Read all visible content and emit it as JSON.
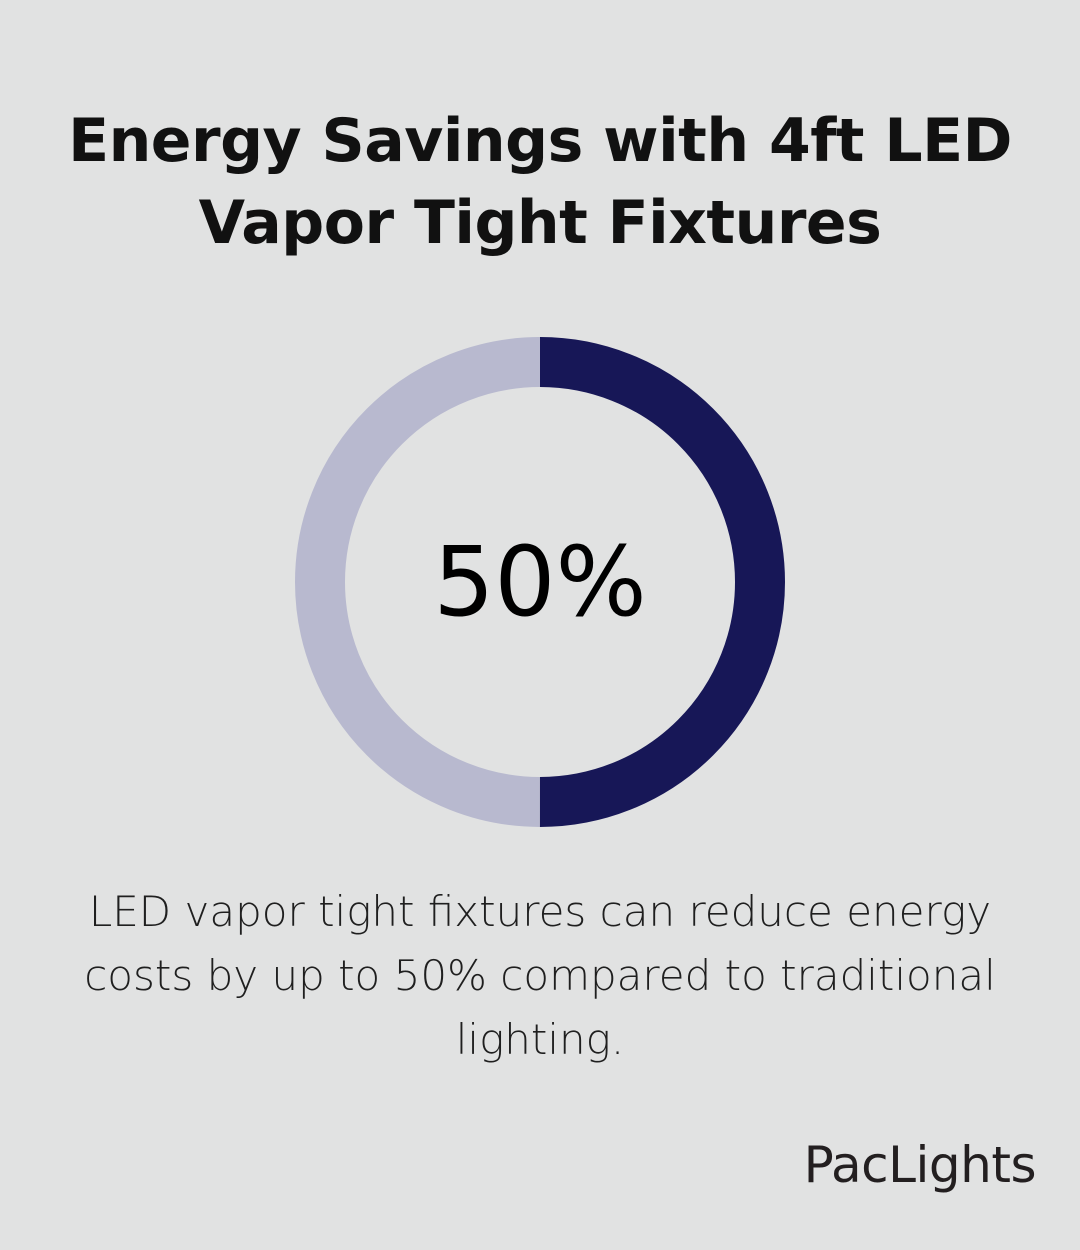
{
  "title_line1": "Energy Savings with 4ft LED",
  "title_line2": "Vapor Tight Fixtures",
  "chart_data": {
    "type": "pie",
    "variant": "donut",
    "value_percent": 50,
    "center_label": "50%",
    "slices": [
      {
        "value": 50,
        "color": "#171757"
      },
      {
        "value": 50,
        "color": "#B8B9CF"
      }
    ]
  },
  "caption": "LED vapor tight fixtures can reduce energy costs by up to 50% compared to traditional lighting.",
  "brand": "PacLights",
  "colors": {
    "background": "#E1E2E2",
    "accent": "#171757",
    "track": "#B8B9CF",
    "text": "#111111"
  }
}
